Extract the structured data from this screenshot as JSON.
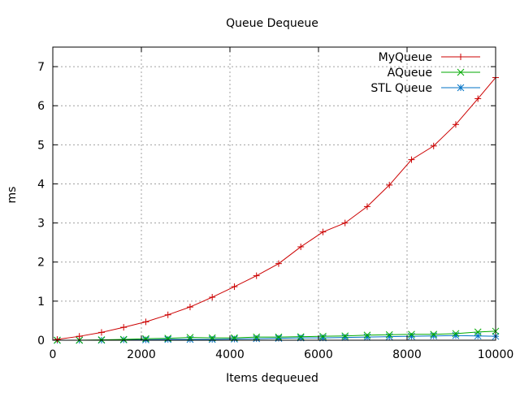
{
  "chart_data": {
    "type": "line",
    "title": "Queue Dequeue",
    "xlabel": "Items dequeued",
    "ylabel": "ms",
    "xlim": [
      0,
      10000
    ],
    "ylim": [
      0,
      7.5
    ],
    "xticks": [
      0,
      2000,
      4000,
      6000,
      8000,
      10000
    ],
    "yticks": [
      0,
      1,
      2,
      3,
      4,
      5,
      6,
      7
    ],
    "grid": true,
    "legend_position": "top-right",
    "series": [
      {
        "name": "MyQueue",
        "color": "#cc0000",
        "marker": "plus",
        "x": [
          100,
          600,
          1100,
          1600,
          2100,
          2600,
          3100,
          3600,
          4100,
          4600,
          5100,
          5600,
          6100,
          6600,
          7100,
          7600,
          8100,
          8600,
          9100,
          9600,
          10000
        ],
        "y": [
          0.02,
          0.1,
          0.2,
          0.33,
          0.47,
          0.65,
          0.85,
          1.1,
          1.37,
          1.65,
          1.96,
          2.39,
          2.77,
          3.0,
          3.42,
          3.97,
          4.62,
          4.97,
          5.52,
          6.18,
          6.72
        ]
      },
      {
        "name": "AQueue",
        "color": "#00aa00",
        "marker": "cross",
        "x": [
          100,
          600,
          1100,
          1600,
          2100,
          2600,
          3100,
          3600,
          4100,
          4600,
          5100,
          5600,
          6100,
          6600,
          7100,
          7600,
          8100,
          8600,
          9100,
          9600,
          10000
        ],
        "y": [
          0.0,
          0.0,
          0.01,
          0.02,
          0.04,
          0.05,
          0.07,
          0.06,
          0.06,
          0.08,
          0.08,
          0.09,
          0.1,
          0.11,
          0.13,
          0.14,
          0.15,
          0.15,
          0.17,
          0.21,
          0.23
        ]
      },
      {
        "name": "STL Queue",
        "color": "#0072c6",
        "marker": "star",
        "x": [
          100,
          600,
          1100,
          1600,
          2100,
          2600,
          3100,
          3600,
          4100,
          4600,
          5100,
          5600,
          6100,
          6600,
          7100,
          7600,
          8100,
          8600,
          9100,
          9600,
          10000
        ],
        "y": [
          0.0,
          0.0,
          0.0,
          0.01,
          0.01,
          0.02,
          0.02,
          0.02,
          0.03,
          0.04,
          0.05,
          0.06,
          0.06,
          0.07,
          0.08,
          0.09,
          0.1,
          0.11,
          0.12,
          0.11,
          0.1
        ]
      }
    ]
  }
}
